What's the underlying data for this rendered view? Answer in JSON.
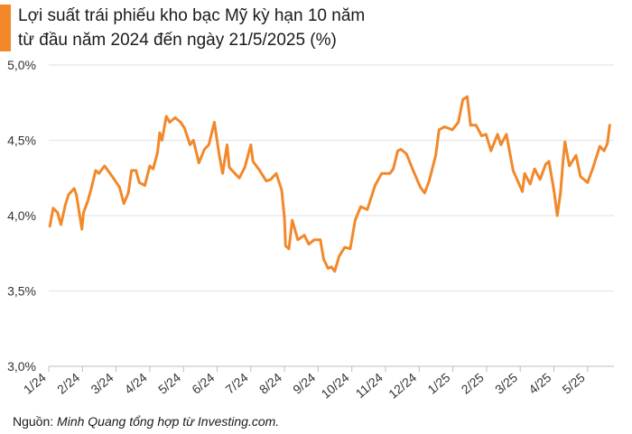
{
  "colors": {
    "accent": "#f2882a",
    "line": "#f2882a",
    "grid": "#e2e2e2",
    "axis": "#bdbdbd"
  },
  "header": {
    "title_line1": "Lợi suất trái phiếu kho bạc Mỹ kỳ hạn 10 năm",
    "title_line2": "từ đầu năm 2024 đến ngày 21/5/2025 (%)"
  },
  "footer": {
    "source_prefix": "Nguồn: ",
    "source_text": "Minh Quang tổng hợp từ Investing.com."
  },
  "chart_data": {
    "type": "line",
    "title": "Lợi suất trái phiếu kho bạc Mỹ kỳ hạn 10 năm từ đầu năm 2024 đến ngày 21/5/2025 (%)",
    "xlabel": "",
    "ylabel": "",
    "ylim": [
      3.0,
      5.0
    ],
    "y_ticks": [
      "3,0%",
      "3,5%",
      "4,0%",
      "4,5%",
      "5,0%"
    ],
    "x_ticks": [
      "1/24",
      "2/24",
      "3/24",
      "4/24",
      "5/24",
      "6/24",
      "7/24",
      "8/24",
      "9/24",
      "10/24",
      "11/24",
      "12/24",
      "1/25",
      "2/25",
      "3/25",
      "4/25",
      "5/25"
    ],
    "grid": "horizontal",
    "legend": "none",
    "series": [
      {
        "x": [
          "2024-01-02",
          "2024-01-05",
          "2024-01-09",
          "2024-01-12",
          "2024-01-16",
          "2024-01-19",
          "2024-01-24",
          "2024-01-26",
          "2024-01-31",
          "2024-02-02",
          "2024-02-06",
          "2024-02-09",
          "2024-02-13",
          "2024-02-16",
          "2024-02-21",
          "2024-02-26",
          "2024-02-29",
          "2024-03-04",
          "2024-03-08",
          "2024-03-12",
          "2024-03-15",
          "2024-03-19",
          "2024-03-22",
          "2024-03-27",
          "2024-04-01",
          "2024-04-04",
          "2024-04-08",
          "2024-04-10",
          "2024-04-12",
          "2024-04-16",
          "2024-04-19",
          "2024-04-24",
          "2024-04-29",
          "2024-05-02",
          "2024-05-07",
          "2024-05-10",
          "2024-05-15",
          "2024-05-20",
          "2024-05-24",
          "2024-05-29",
          "2024-06-03",
          "2024-06-06",
          "2024-06-10",
          "2024-06-12",
          "2024-06-17",
          "2024-06-21",
          "2024-06-26",
          "2024-07-01",
          "2024-07-03",
          "2024-07-09",
          "2024-07-15",
          "2024-07-19",
          "2024-07-24",
          "2024-07-29",
          "2024-08-01",
          "2024-08-02",
          "2024-08-05",
          "2024-08-08",
          "2024-08-13",
          "2024-08-19",
          "2024-08-23",
          "2024-08-28",
          "2024-09-03",
          "2024-09-06",
          "2024-09-10",
          "2024-09-13",
          "2024-09-16",
          "2024-09-20",
          "2024-09-25",
          "2024-09-30",
          "2024-10-04",
          "2024-10-09",
          "2024-10-15",
          "2024-10-22",
          "2024-10-28",
          "2024-10-31",
          "2024-11-05",
          "2024-11-08",
          "2024-11-12",
          "2024-11-15",
          "2024-11-20",
          "2024-11-26",
          "2024-12-02",
          "2024-12-06",
          "2024-12-10",
          "2024-12-16",
          "2024-12-19",
          "2024-12-24",
          "2024-12-31",
          "2025-01-06",
          "2025-01-10",
          "2025-01-14",
          "2025-01-17",
          "2025-01-22",
          "2025-01-27",
          "2025-01-31",
          "2025-02-05",
          "2025-02-11",
          "2025-02-14",
          "2025-02-19",
          "2025-02-25",
          "2025-03-03",
          "2025-03-05",
          "2025-03-10",
          "2025-03-14",
          "2025-03-19",
          "2025-03-24",
          "2025-03-27",
          "2025-04-01",
          "2025-04-04",
          "2025-04-07",
          "2025-04-09",
          "2025-04-11",
          "2025-04-15",
          "2025-04-21",
          "2025-04-25",
          "2025-05-01",
          "2025-05-06",
          "2025-05-12",
          "2025-05-16",
          "2025-05-19",
          "2025-05-21"
        ],
        "values": [
          3.93,
          4.05,
          4.02,
          3.94,
          4.07,
          4.14,
          4.18,
          4.14,
          3.91,
          4.02,
          4.1,
          4.18,
          4.3,
          4.28,
          4.33,
          4.28,
          4.25,
          4.19,
          4.08,
          4.15,
          4.3,
          4.3,
          4.22,
          4.2,
          4.33,
          4.31,
          4.42,
          4.55,
          4.5,
          4.66,
          4.62,
          4.65,
          4.62,
          4.58,
          4.47,
          4.5,
          4.35,
          4.44,
          4.47,
          4.62,
          4.4,
          4.28,
          4.47,
          4.32,
          4.28,
          4.25,
          4.32,
          4.47,
          4.36,
          4.3,
          4.23,
          4.24,
          4.28,
          4.17,
          3.98,
          3.8,
          3.78,
          3.97,
          3.84,
          3.87,
          3.81,
          3.84,
          3.84,
          3.71,
          3.65,
          3.66,
          3.63,
          3.73,
          3.79,
          3.78,
          3.97,
          4.06,
          4.04,
          4.2,
          4.28,
          4.28,
          4.28,
          4.31,
          4.43,
          4.44,
          4.41,
          4.3,
          4.19,
          4.15,
          4.23,
          4.4,
          4.57,
          4.59,
          4.57,
          4.62,
          4.77,
          4.79,
          4.6,
          4.6,
          4.53,
          4.54,
          4.43,
          4.54,
          4.47,
          4.54,
          4.3,
          4.16,
          4.28,
          4.21,
          4.31,
          4.24,
          4.34,
          4.36,
          4.17,
          4.0,
          4.15,
          4.34,
          4.49,
          4.33,
          4.4,
          4.26,
          4.22,
          4.32,
          4.46,
          4.43,
          4.48,
          4.6
        ]
      }
    ]
  }
}
